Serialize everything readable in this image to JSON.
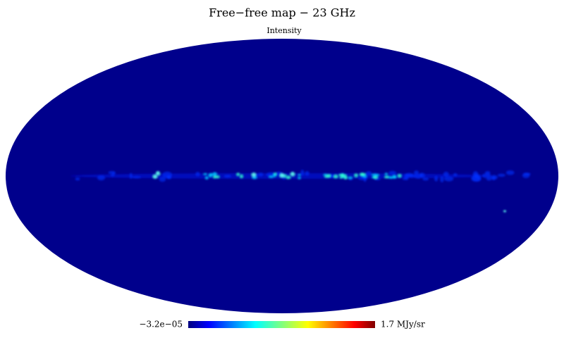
{
  "chart_data": {
    "type": "mollweide",
    "title": "Free−free map − 23 GHz",
    "subtitle": "Intensity",
    "colormap": "jet",
    "colorbar": [
      {
        "value": -3.2e-05,
        "label": "−3.2e−05"
      },
      {
        "value": 1.7,
        "label": "1.7 MJy/sr"
      }
    ]
  }
}
